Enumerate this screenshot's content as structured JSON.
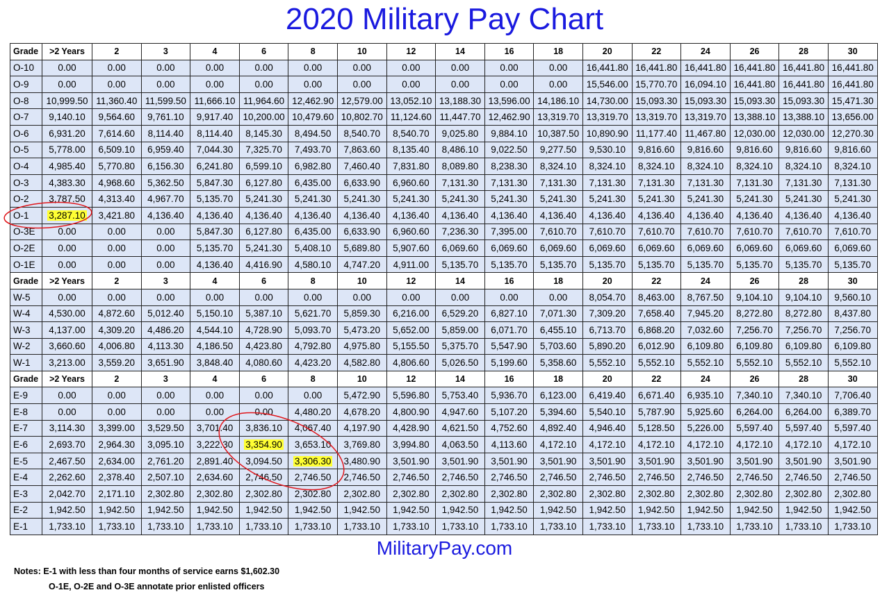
{
  "title": "2020 Military Pay Chart",
  "site": "MilitaryPay.com",
  "notes": {
    "line1": "Notes: E-1 with less than four months of service earns $1,602.30",
    "line2": "O-1E, O-2E and O-3E annotate prior enlisted officers"
  },
  "colors": {
    "title": "#1a1adf",
    "row_fill": "#dde6f7",
    "highlight": "#ffff33",
    "annotation": "#e0151a"
  },
  "headers": [
    "Grade",
    ">2 Years",
    "2",
    "3",
    "4",
    "6",
    "8",
    "10",
    "12",
    "14",
    "16",
    "18",
    "20",
    "22",
    "24",
    "26",
    "28",
    "30"
  ],
  "sections": [
    {
      "rows": [
        [
          "O-10",
          "0.00",
          "0.00",
          "0.00",
          "0.00",
          "0.00",
          "0.00",
          "0.00",
          "0.00",
          "0.00",
          "0.00",
          "0.00",
          "16,441.80",
          "16,441.80",
          "16,441.80",
          "16,441.80",
          "16,441.80",
          "16,441.80"
        ],
        [
          "O-9",
          "0.00",
          "0.00",
          "0.00",
          "0.00",
          "0.00",
          "0.00",
          "0.00",
          "0.00",
          "0.00",
          "0.00",
          "0.00",
          "15,546.00",
          "15,770.70",
          "16,094.10",
          "16,441.80",
          "16,441.80",
          "16,441.80"
        ],
        [
          "O-8",
          "10,999.50",
          "11,360.40",
          "11,599.50",
          "11,666.10",
          "11,964.60",
          "12,462.90",
          "12,579.00",
          "13,052.10",
          "13,188.30",
          "13,596.00",
          "14,186.10",
          "14,730.00",
          "15,093.30",
          "15,093.30",
          "15,093.30",
          "15,093.30",
          "15,471.30"
        ],
        [
          "O-7",
          "9,140.10",
          "9,564.60",
          "9,761.10",
          "9,917.40",
          "10,200.00",
          "10,479.60",
          "10,802.70",
          "11,124.60",
          "11,447.70",
          "12,462.90",
          "13,319.70",
          "13,319.70",
          "13,319.70",
          "13,319.70",
          "13,388.10",
          "13,388.10",
          "13,656.00"
        ],
        [
          "O-6",
          "6,931.20",
          "7,614.60",
          "8,114.40",
          "8,114.40",
          "8,145.30",
          "8,494.50",
          "8,540.70",
          "8,540.70",
          "9,025.80",
          "9,884.10",
          "10,387.50",
          "10,890.90",
          "11,177.40",
          "11,467.80",
          "12,030.00",
          "12,030.00",
          "12,270.30"
        ],
        [
          "O-5",
          "5,778.00",
          "6,509.10",
          "6,959.40",
          "7,044.30",
          "7,325.70",
          "7,493.70",
          "7,863.60",
          "8,135.40",
          "8,486.10",
          "9,022.50",
          "9,277.50",
          "9,530.10",
          "9,816.60",
          "9,816.60",
          "9,816.60",
          "9,816.60",
          "9,816.60"
        ],
        [
          "O-4",
          "4,985.40",
          "5,770.80",
          "6,156.30",
          "6,241.80",
          "6,599.10",
          "6,982.80",
          "7,460.40",
          "7,831.80",
          "8,089.80",
          "8,238.30",
          "8,324.10",
          "8,324.10",
          "8,324.10",
          "8,324.10",
          "8,324.10",
          "8,324.10",
          "8,324.10"
        ],
        [
          "O-3",
          "4,383.30",
          "4,968.60",
          "5,362.50",
          "5,847.30",
          "6,127.80",
          "6,435.00",
          "6,633.90",
          "6,960.60",
          "7,131.30",
          "7,131.30",
          "7,131.30",
          "7,131.30",
          "7,131.30",
          "7,131.30",
          "7,131.30",
          "7,131.30",
          "7,131.30"
        ],
        [
          "O-2",
          "3,787.50",
          "4,313.40",
          "4,967.70",
          "5,135.70",
          "5,241.30",
          "5,241.30",
          "5,241.30",
          "5,241.30",
          "5,241.30",
          "5,241.30",
          "5,241.30",
          "5,241.30",
          "5,241.30",
          "5,241.30",
          "5,241.30",
          "5,241.30",
          "5,241.30"
        ],
        [
          "O-1",
          "3,287.10",
          "3,421.80",
          "4,136.40",
          "4,136.40",
          "4,136.40",
          "4,136.40",
          "4,136.40",
          "4,136.40",
          "4,136.40",
          "4,136.40",
          "4,136.40",
          "4,136.40",
          "4,136.40",
          "4,136.40",
          "4,136.40",
          "4,136.40",
          "4,136.40"
        ],
        [
          "O-3E",
          "0.00",
          "0.00",
          "0.00",
          "5,847.30",
          "6,127.80",
          "6,435.00",
          "6,633.90",
          "6,960.60",
          "7,236.30",
          "7,395.00",
          "7,610.70",
          "7,610.70",
          "7,610.70",
          "7,610.70",
          "7,610.70",
          "7,610.70",
          "7,610.70"
        ],
        [
          "O-2E",
          "0.00",
          "0.00",
          "0.00",
          "5,135.70",
          "5,241.30",
          "5,408.10",
          "5,689.80",
          "5,907.60",
          "6,069.60",
          "6,069.60",
          "6,069.60",
          "6,069.60",
          "6,069.60",
          "6,069.60",
          "6,069.60",
          "6,069.60",
          "6,069.60"
        ],
        [
          "O-1E",
          "0.00",
          "0.00",
          "0.00",
          "4,136.40",
          "4,416.90",
          "4,580.10",
          "4,747.20",
          "4,911.00",
          "5,135.70",
          "5,135.70",
          "5,135.70",
          "5,135.70",
          "5,135.70",
          "5,135.70",
          "5,135.70",
          "5,135.70",
          "5,135.70"
        ]
      ]
    },
    {
      "rows": [
        [
          "W-5",
          "0.00",
          "0.00",
          "0.00",
          "0.00",
          "0.00",
          "0.00",
          "0.00",
          "0.00",
          "0.00",
          "0.00",
          "0.00",
          "8,054.70",
          "8,463.00",
          "8,767.50",
          "9,104.10",
          "9,104.10",
          "9,560.10"
        ],
        [
          "W-4",
          "4,530.00",
          "4,872.60",
          "5,012.40",
          "5,150.10",
          "5,387.10",
          "5,621.70",
          "5,859.30",
          "6,216.00",
          "6,529.20",
          "6,827.10",
          "7,071.30",
          "7,309.20",
          "7,658.40",
          "7,945.20",
          "8,272.80",
          "8,272.80",
          "8,437.80"
        ],
        [
          "W-3",
          "4,137.00",
          "4,309.20",
          "4,486.20",
          "4,544.10",
          "4,728.90",
          "5,093.70",
          "5,473.20",
          "5,652.00",
          "5,859.00",
          "6,071.70",
          "6,455.10",
          "6,713.70",
          "6,868.20",
          "7,032.60",
          "7,256.70",
          "7,256.70",
          "7,256.70"
        ],
        [
          "W-2",
          "3,660.60",
          "4,006.80",
          "4,113.30",
          "4,186.50",
          "4,423.80",
          "4,792.80",
          "4,975.80",
          "5,155.50",
          "5,375.70",
          "5,547.90",
          "5,703.60",
          "5,890.20",
          "6,012.90",
          "6,109.80",
          "6,109.80",
          "6,109.80",
          "6,109.80"
        ],
        [
          "W-1",
          "3,213.00",
          "3,559.20",
          "3,651.90",
          "3,848.40",
          "4,080.60",
          "4,423.20",
          "4,582.80",
          "4,806.60",
          "5,026.50",
          "5,199.60",
          "5,358.60",
          "5,552.10",
          "5,552.10",
          "5,552.10",
          "5,552.10",
          "5,552.10",
          "5,552.10"
        ]
      ]
    },
    {
      "rows": [
        [
          "E-9",
          "0.00",
          "0.00",
          "0.00",
          "0.00",
          "0.00",
          "0.00",
          "5,472.90",
          "5,596.80",
          "5,753.40",
          "5,936.70",
          "6,123.00",
          "6,419.40",
          "6,671.40",
          "6,935.10",
          "7,340.10",
          "7,340.10",
          "7,706.40"
        ],
        [
          "E-8",
          "0.00",
          "0.00",
          "0.00",
          "0.00",
          "0.00",
          "4,480.20",
          "4,678.20",
          "4,800.90",
          "4,947.60",
          "5,107.20",
          "5,394.60",
          "5,540.10",
          "5,787.90",
          "5,925.60",
          "6,264.00",
          "6,264.00",
          "6,389.70"
        ],
        [
          "E-7",
          "3,114.30",
          "3,399.00",
          "3,529.50",
          "3,701.40",
          "3,836.10",
          "4,067.40",
          "4,197.90",
          "4,428.90",
          "4,621.50",
          "4,752.60",
          "4,892.40",
          "4,946.40",
          "5,128.50",
          "5,226.00",
          "5,597.40",
          "5,597.40",
          "5,597.40"
        ],
        [
          "E-6",
          "2,693.70",
          "2,964.30",
          "3,095.10",
          "3,222.30",
          "3,354.90",
          "3,653.10",
          "3,769.80",
          "3,994.80",
          "4,063.50",
          "4,113.60",
          "4,172.10",
          "4,172.10",
          "4,172.10",
          "4,172.10",
          "4,172.10",
          "4,172.10",
          "4,172.10"
        ],
        [
          "E-5",
          "2,467.50",
          "2,634.00",
          "2,761.20",
          "2,891.40",
          "3,094.50",
          "3,306.30",
          "3,480.90",
          "3,501.90",
          "3,501.90",
          "3,501.90",
          "3,501.90",
          "3,501.90",
          "3,501.90",
          "3,501.90",
          "3,501.90",
          "3,501.90",
          "3,501.90"
        ],
        [
          "E-4",
          "2,262.60",
          "2,378.40",
          "2,507.10",
          "2,634.60",
          "2,746.50",
          "2,746.50",
          "2,746.50",
          "2,746.50",
          "2,746.50",
          "2,746.50",
          "2,746.50",
          "2,746.50",
          "2,746.50",
          "2,746.50",
          "2,746.50",
          "2,746.50",
          "2,746.50"
        ],
        [
          "E-3",
          "2,042.70",
          "2,171.10",
          "2,302.80",
          "2,302.80",
          "2,302.80",
          "2,302.80",
          "2,302.80",
          "2,302.80",
          "2,302.80",
          "2,302.80",
          "2,302.80",
          "2,302.80",
          "2,302.80",
          "2,302.80",
          "2,302.80",
          "2,302.80",
          "2,302.80"
        ],
        [
          "E-2",
          "1,942.50",
          "1,942.50",
          "1,942.50",
          "1,942.50",
          "1,942.50",
          "1,942.50",
          "1,942.50",
          "1,942.50",
          "1,942.50",
          "1,942.50",
          "1,942.50",
          "1,942.50",
          "1,942.50",
          "1,942.50",
          "1,942.50",
          "1,942.50",
          "1,942.50"
        ],
        [
          "E-1",
          "1,733.10",
          "1,733.10",
          "1,733.10",
          "1,733.10",
          "1,733.10",
          "1,733.10",
          "1,733.10",
          "1,733.10",
          "1,733.10",
          "1,733.10",
          "1,733.10",
          "1,733.10",
          "1,733.10",
          "1,733.10",
          "1,733.10",
          "1,733.10",
          "1,733.10"
        ]
      ]
    }
  ],
  "highlighted_cells": [
    "O-1|>2 Years",
    "E-6|6",
    "E-5|8"
  ]
}
